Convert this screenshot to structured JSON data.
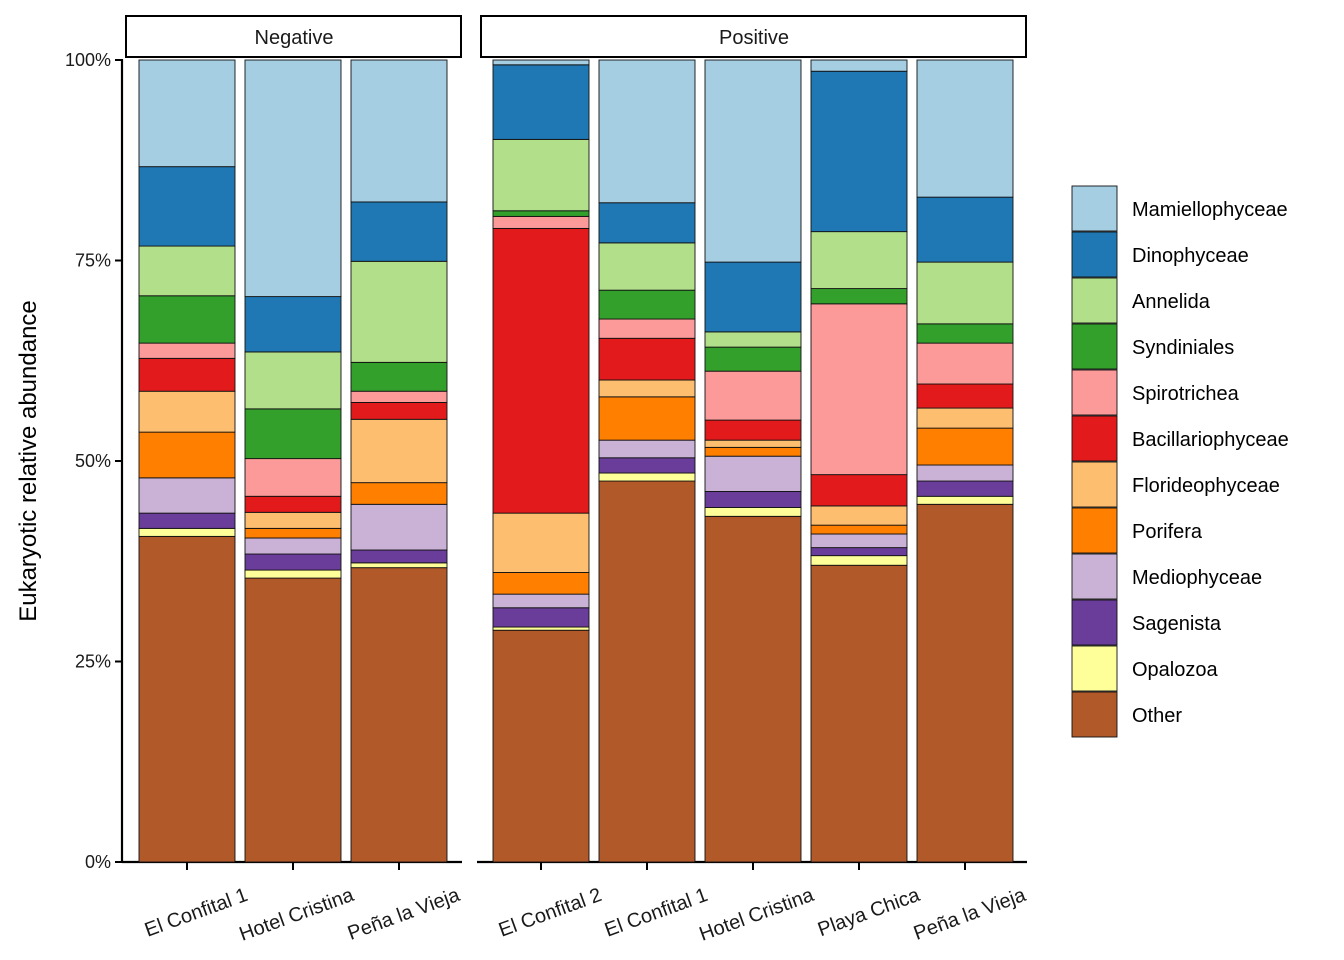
{
  "chart_data": {
    "type": "bar",
    "stacked": true,
    "title": "",
    "xlabel": "",
    "ylabel": "Eukaryotic relative abundance",
    "ylim": [
      0,
      100
    ],
    "yticks": [
      "0%",
      "25%",
      "50%",
      "75%",
      "100%"
    ],
    "ytick_values": [
      0,
      25,
      50,
      75,
      100
    ],
    "legend_position": "right",
    "legend": [
      "Mamiellophyceae",
      "Dinophyceae",
      "Annelida",
      "Syndiniales",
      "Spirotrichea",
      "Bacillariophyceae",
      "Florideophyceae",
      "Porifera",
      "Mediophyceae",
      "Sagenista",
      "Opalozoa",
      "Other"
    ],
    "colors": {
      "Mamiellophyceae": "#A6CEE3",
      "Dinophyceae": "#1F78B4",
      "Annelida": "#B2DF8A",
      "Syndiniales": "#33A02C",
      "Spirotrichea": "#FB9A99",
      "Bacillariophyceae": "#E31A1C",
      "Florideophyceae": "#FDBF6F",
      "Porifera": "#FF7F00",
      "Mediophyceae": "#CAB2D6",
      "Sagenista": "#6A3D9A",
      "Opalozoa": "#FFFF99",
      "Other": "#B15928"
    },
    "stack_order_bottom_up": [
      "Other",
      "Opalozoa",
      "Sagenista",
      "Mediophyceae",
      "Porifera",
      "Florideophyceae",
      "Bacillariophyceae",
      "Spirotrichea",
      "Syndiniales",
      "Annelida",
      "Dinophyceae",
      "Mamiellophyceae"
    ],
    "facets": [
      {
        "label": "Negative",
        "categories": [
          "El Confital 1",
          "Hotel Cristina",
          "Peña la Vieja"
        ],
        "series": [
          {
            "name": "Other",
            "values": [
              40.6,
              35.4,
              36.7
            ]
          },
          {
            "name": "Opalozoa",
            "values": [
              1.0,
              1.0,
              0.6
            ]
          },
          {
            "name": "Sagenista",
            "values": [
              1.9,
              2.0,
              1.6
            ]
          },
          {
            "name": "Mediophyceae",
            "values": [
              4.4,
              2.0,
              5.7
            ]
          },
          {
            "name": "Porifera",
            "values": [
              5.7,
              1.2,
              2.7
            ]
          },
          {
            "name": "Florideophyceae",
            "values": [
              5.1,
              2.0,
              7.9
            ]
          },
          {
            "name": "Bacillariophyceae",
            "values": [
              4.1,
              2.0,
              2.1
            ]
          },
          {
            "name": "Spirotrichea",
            "values": [
              1.9,
              4.7,
              1.4
            ]
          },
          {
            "name": "Syndiniales",
            "values": [
              5.9,
              6.2,
              3.6
            ]
          },
          {
            "name": "Annelida",
            "values": [
              6.2,
              7.1,
              12.6
            ]
          },
          {
            "name": "Dinophyceae",
            "values": [
              9.9,
              6.9,
              7.4
            ]
          },
          {
            "name": "Mamiellophyceae",
            "values": [
              13.3,
              29.5,
              17.7
            ]
          }
        ]
      },
      {
        "label": "Positive",
        "categories": [
          "El Confital 2",
          "El Confital 1",
          "Hotel Cristina",
          "Playa Chica",
          "Peña la Vieja"
        ],
        "series": [
          {
            "name": "Other",
            "values": [
              28.9,
              47.5,
              43.1,
              37.0,
              44.6
            ]
          },
          {
            "name": "Opalozoa",
            "values": [
              0.4,
              1.0,
              1.1,
              1.2,
              1.0
            ]
          },
          {
            "name": "Sagenista",
            "values": [
              2.4,
              1.9,
              2.0,
              1.0,
              1.9
            ]
          },
          {
            "name": "Mediophyceae",
            "values": [
              1.7,
              2.2,
              4.4,
              1.7,
              2.0
            ]
          },
          {
            "name": "Porifera",
            "values": [
              2.7,
              5.4,
              1.1,
              1.1,
              4.6
            ]
          },
          {
            "name": "Florideophyceae",
            "values": [
              7.4,
              2.1,
              0.9,
              2.4,
              2.5
            ]
          },
          {
            "name": "Bacillariophyceae",
            "values": [
              35.5,
              5.2,
              2.5,
              3.9,
              3.0
            ]
          },
          {
            "name": "Spirotrichea",
            "values": [
              1.5,
              2.4,
              6.1,
              21.3,
              5.1
            ]
          },
          {
            "name": "Syndiniales",
            "values": [
              0.7,
              3.6,
              3.0,
              1.9,
              2.4
            ]
          },
          {
            "name": "Annelida",
            "values": [
              8.9,
              5.9,
              1.9,
              7.1,
              7.7
            ]
          },
          {
            "name": "Dinophyceae",
            "values": [
              9.3,
              5.0,
              8.7,
              20.0,
              8.1
            ]
          },
          {
            "name": "Mamiellophyceae",
            "values": [
              0.6,
              17.8,
              25.2,
              1.4,
              17.1
            ]
          }
        ]
      }
    ]
  }
}
